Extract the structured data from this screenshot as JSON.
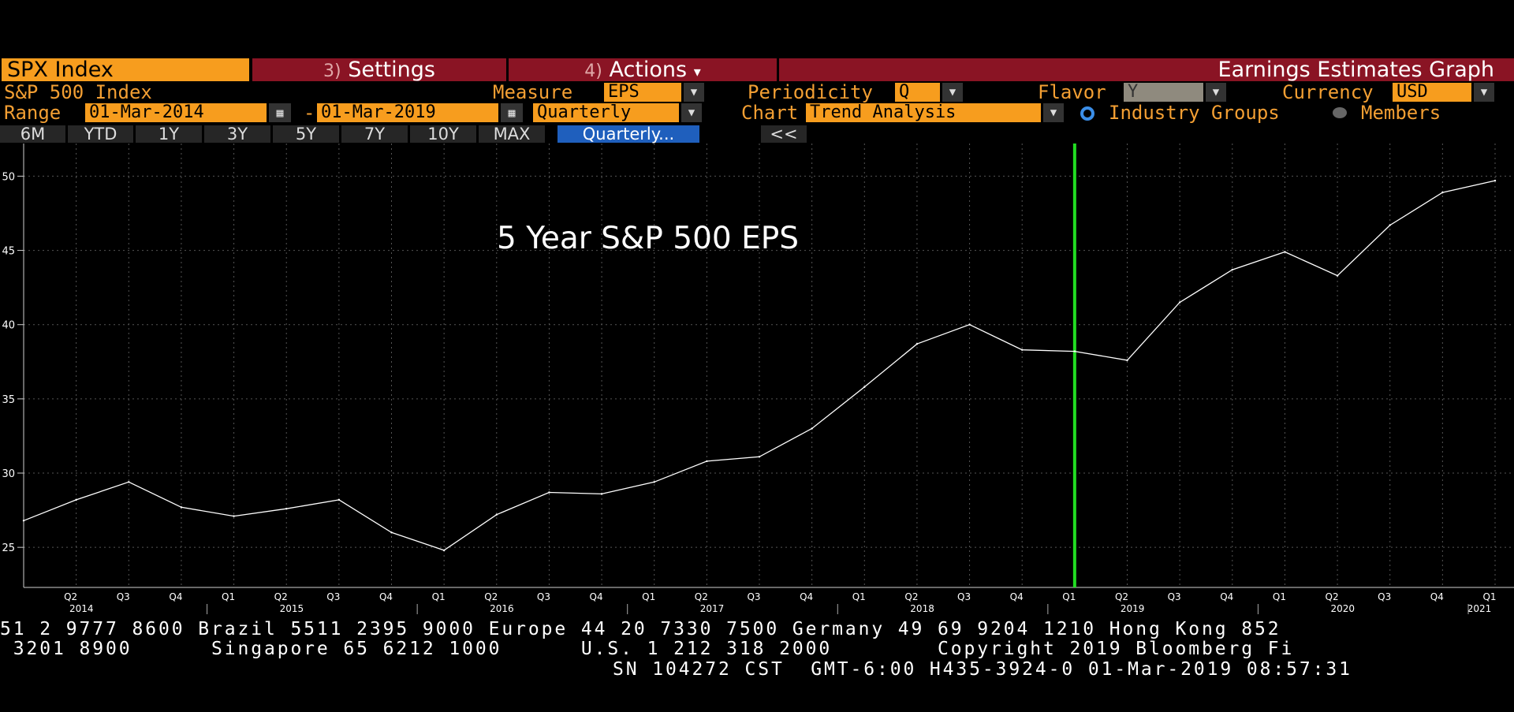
{
  "tabs": {
    "index": "SPX Index",
    "settings_num": "3)",
    "settings": "Settings",
    "actions_num": "4)",
    "actions": "Actions",
    "actions_caret": "▾",
    "title": "Earnings Estimates Graph"
  },
  "row1": {
    "security": "S&P 500 Index",
    "measure_label": "Measure",
    "measure_value": "EPS",
    "periodicity_label": "Periodicity",
    "periodicity_value": "Q",
    "flavor_label": "Flavor",
    "flavor_value": "Y",
    "currency_label": "Currency",
    "currency_value": "USD"
  },
  "row2": {
    "range_label": "Range",
    "range_start": "01-Mar-2014",
    "range_sep": "-",
    "range_end": "01-Mar-2019",
    "frequency": "Quarterly",
    "chart_label": "Chart",
    "chart_value": "Trend Analysis",
    "radio_industry": "Industry Groups",
    "radio_members": "Members"
  },
  "period_buttons": [
    "6M",
    "YTD",
    "1Y",
    "3Y",
    "5Y",
    "7Y",
    "10Y",
    "MAX",
    "Quarterly..."
  ],
  "collapse_button": "<<",
  "icons": {
    "dropdown": "dropdown-arrow-icon",
    "calendar": "calendar-icon"
  },
  "colors": {
    "accent": "#f79d1e",
    "tab_bg": "#8a1424",
    "line": "#ffffff",
    "marker": "#22dd22",
    "button_selected": "#1f5fbd"
  },
  "chart_data": {
    "type": "line",
    "title": "5 Year S&P 500 EPS",
    "x": [
      "Q1 2014",
      "Q2 2014",
      "Q3 2014",
      "Q4 2014",
      "Q1 2015",
      "Q2 2015",
      "Q3 2015",
      "Q4 2015",
      "Q1 2016",
      "Q2 2016",
      "Q3 2016",
      "Q4 2016",
      "Q1 2017",
      "Q2 2017",
      "Q3 2017",
      "Q4 2017",
      "Q1 2018",
      "Q2 2018",
      "Q3 2018",
      "Q4 2018",
      "Q1 2019",
      "Q2 2019",
      "Q3 2019",
      "Q4 2019",
      "Q1 2020",
      "Q2 2020",
      "Q3 2020",
      "Q4 2020",
      "Q1 2021"
    ],
    "series": [
      {
        "values": [
          26.8,
          28.2,
          29.4,
          27.7,
          27.1,
          27.6,
          28.2,
          26.0,
          24.8,
          27.2,
          28.7,
          28.6,
          29.4,
          30.8,
          31.1,
          33.0,
          35.8,
          38.7,
          40.0,
          38.3,
          38.2,
          37.6,
          41.5,
          43.7,
          44.9,
          43.3,
          46.7,
          48.9,
          49.7
        ]
      }
    ],
    "x_tick_labels": [
      "Q2",
      "Q3",
      "Q4",
      "Q1",
      "Q2",
      "Q3",
      "Q4",
      "Q1",
      "Q2",
      "Q3",
      "Q4",
      "Q1",
      "Q2",
      "Q3",
      "Q4",
      "Q1",
      "Q2",
      "Q3",
      "Q4",
      "Q1",
      "Q2",
      "Q3",
      "Q4",
      "Q1",
      "Q2",
      "Q3",
      "Q4",
      "Q1"
    ],
    "year_labels": [
      "2014",
      "2015",
      "2016",
      "2017",
      "2018",
      "2019",
      "2020",
      "2021"
    ],
    "yticks": [
      25,
      30,
      35,
      40,
      45,
      50
    ],
    "ylim": [
      22.3,
      52.2
    ],
    "marker_at": "Q1 2019",
    "grid": true
  },
  "footer": {
    "line1": "51 2 9777 8600 Brazil 5511 2395 9000 Europe 44 20 7330 7500 Germany 49 69 9204 1210 Hong Kong 852",
    "line2": " 3201 8900      Singapore 65 6212 1000      U.S. 1 212 318 2000        Copyright 2019 Bloomberg Fi",
    "line3": "SN 104272 CST  GMT-6:00 H435-3924-0 01-Mar-2019 08:57:31"
  }
}
